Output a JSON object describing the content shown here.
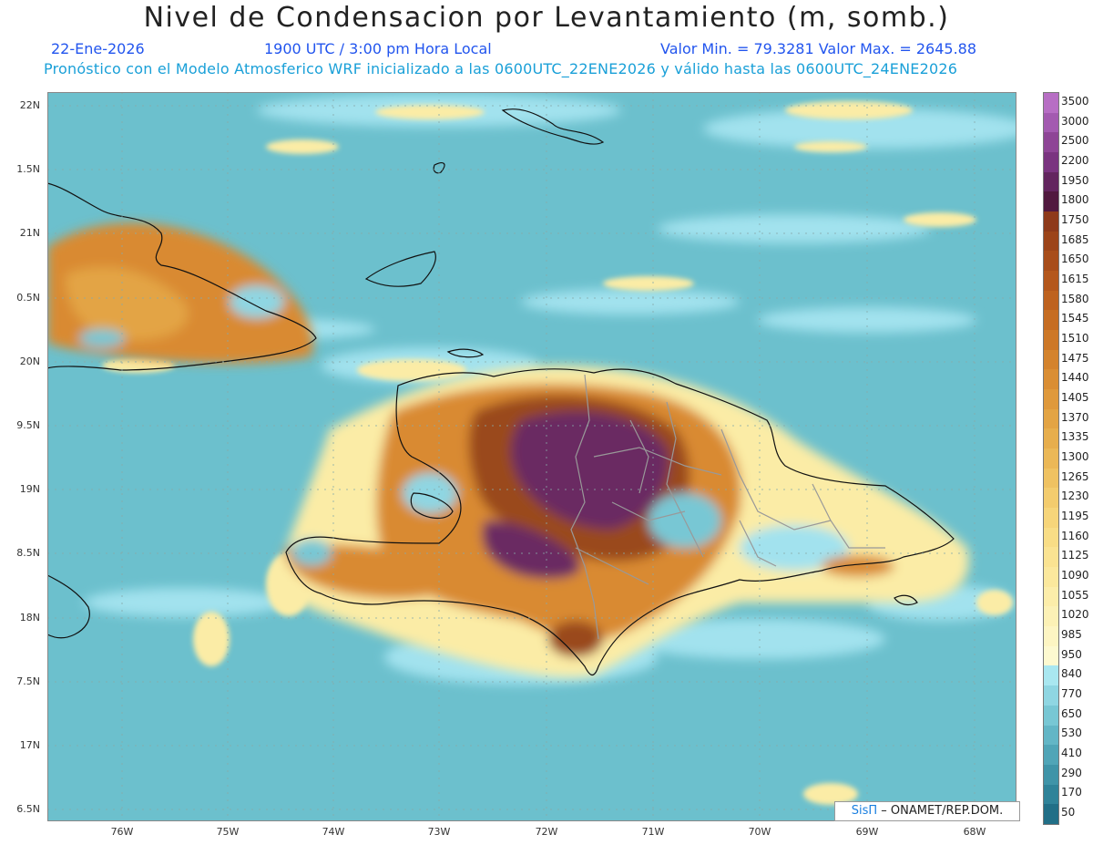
{
  "title": "Nivel de Condensacion por Levantamiento (m, somb.)",
  "date": "22-Ene-2026",
  "time": "1900 UTC / 3:00 pm Hora Local",
  "minmax": "Valor Min. = 79.3281  Valor Max. = 2645.88",
  "forecast": "Pronóstico con el Modelo Atmosferico WRF inicializado a las 0600UTC_22ENE2026 y válido hasta las  0600UTC_24ENE2026",
  "credit_logo": "SisΠ",
  "credit_text": "– ONAMET/REP.DOM.",
  "lat_labels": [
    "22N",
    "1.5N",
    "21N",
    "0.5N",
    "20N",
    "9.5N",
    "19N",
    "8.5N",
    "18N",
    "7.5N",
    "17N",
    "6.5N"
  ],
  "lon_labels": [
    "76W",
    "75W",
    "74W",
    "73W",
    "72W",
    "71W",
    "70W",
    "69W",
    "68W"
  ],
  "colorbar": {
    "labels": [
      "3500",
      "3000",
      "2500",
      "2200",
      "1950",
      "1800",
      "1750",
      "1685",
      "1650",
      "1615",
      "1580",
      "1545",
      "1510",
      "1475",
      "1440",
      "1405",
      "1370",
      "1335",
      "1300",
      "1265",
      "1230",
      "1195",
      "1160",
      "1125",
      "1090",
      "1055",
      "1020",
      "985",
      "950",
      "840",
      "770",
      "650",
      "530",
      "410",
      "290",
      "170",
      "50"
    ],
    "colors": [
      "#b76ec4",
      "#a35ab0",
      "#8e4596",
      "#7a3480",
      "#63255f",
      "#51193f",
      "#8e3a1a",
      "#9c4419",
      "#a84d1a",
      "#b4571c",
      "#be621f",
      "#c66d22",
      "#cd7827",
      "#d4832d",
      "#da8e34",
      "#df993c",
      "#e3a444",
      "#e7ae4d",
      "#ebb857",
      "#efc262",
      "#f3cc6e",
      "#f6d57a",
      "#f8dd86",
      "#fae392",
      "#fbe89d",
      "#fcedaa",
      "#fcf1b6",
      "#fdf5c3",
      "#fdf9d0",
      "#a9e7f0",
      "#8fd6e2",
      "#78c7d4",
      "#63b6c6",
      "#50a5b7",
      "#3f94a8",
      "#2f8399",
      "#216f87"
    ]
  },
  "colors": {
    "sea": "#6cc0cd",
    "pale": "#a2e2ee",
    "yellow": "#fbeca6",
    "orange": "#d98a33",
    "brown": "#9a4a1b",
    "purple": "#6a2a62"
  }
}
